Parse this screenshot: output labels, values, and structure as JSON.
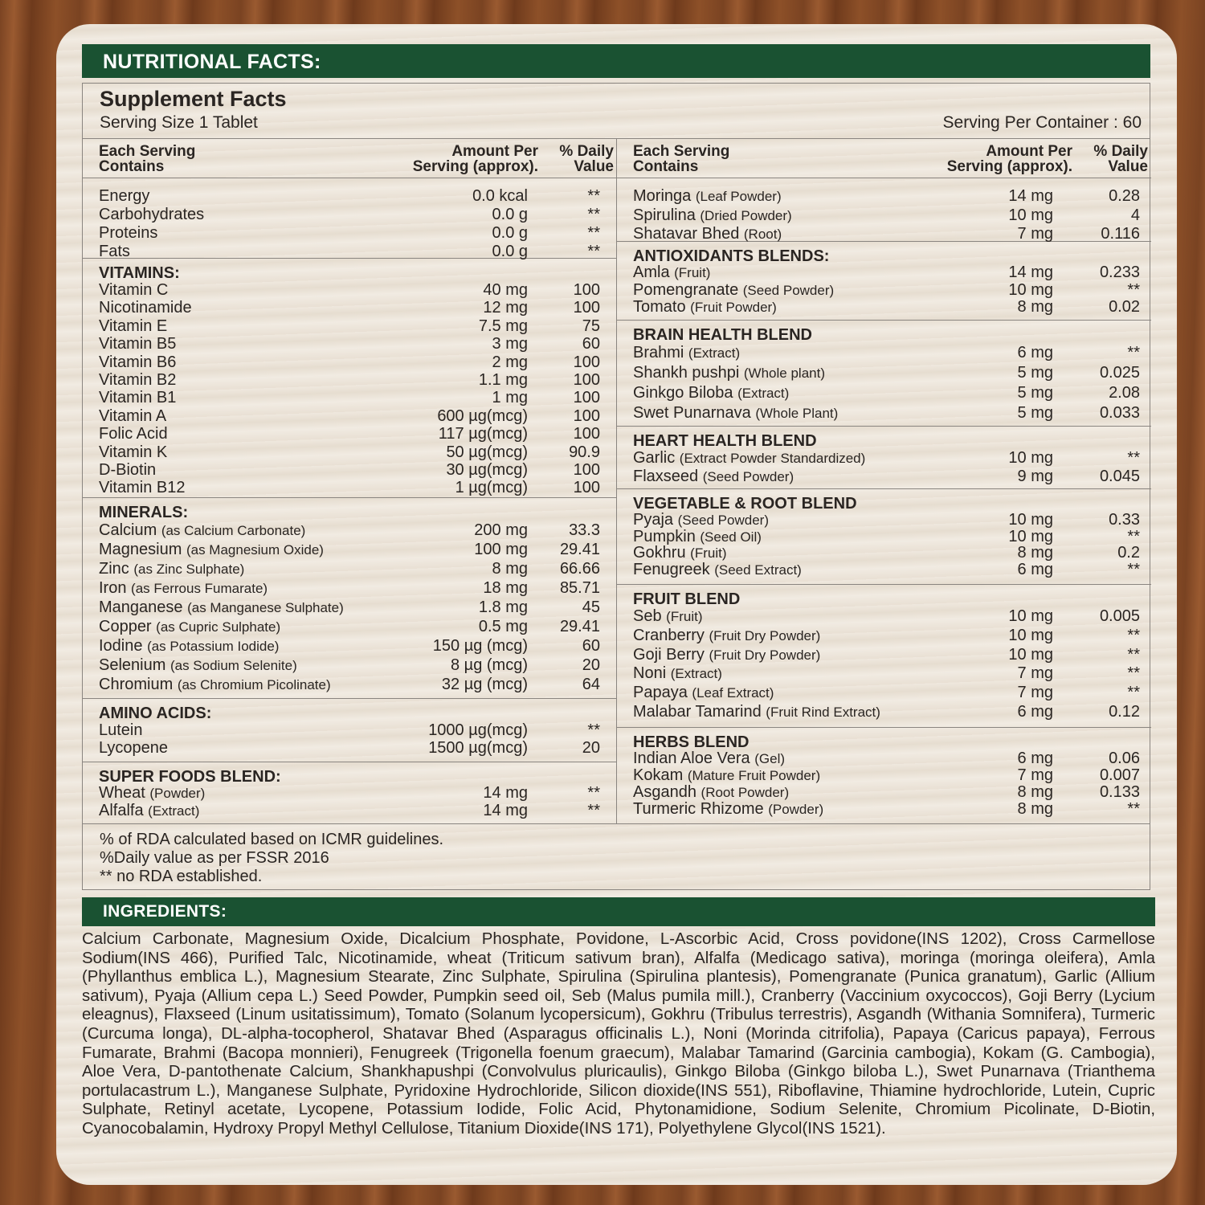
{
  "header": {
    "title": "NUTRITIONAL FACTS:"
  },
  "supplement": {
    "title": "Supplement Facts",
    "serving_size": "Serving Size 1 Tablet",
    "serving_per_container": "Serving Per Container : 60"
  },
  "columns": {
    "name": [
      "Each Serving",
      "Contains"
    ],
    "amount": [
      "Amount Per",
      "Serving (approx)."
    ],
    "dv": [
      "% Daily",
      "Value"
    ]
  },
  "left_sections": [
    {
      "title": "",
      "rows": [
        {
          "name": "Energy",
          "amount": "0.0 kcal",
          "dv": "**"
        },
        {
          "name": "Carbohydrates",
          "amount": "0.0 g",
          "dv": "**"
        },
        {
          "name": "Proteins",
          "amount": "0.0 g",
          "dv": "**"
        },
        {
          "name": "Fats",
          "amount": "0.0 g",
          "dv": "**"
        }
      ]
    },
    {
      "title": "VITAMINS:",
      "rows": [
        {
          "name": "Vitamin C",
          "amount": "40 mg",
          "dv": "100"
        },
        {
          "name": "Nicotinamide",
          "amount": "12 mg",
          "dv": "100"
        },
        {
          "name": "Vitamin E",
          "amount": "7.5 mg",
          "dv": "75"
        },
        {
          "name": "Vitamin B5",
          "amount": "3 mg",
          "dv": "60"
        },
        {
          "name": "Vitamin B6",
          "amount": "2 mg",
          "dv": "100"
        },
        {
          "name": "Vitamin B2",
          "amount": "1.1 mg",
          "dv": "100"
        },
        {
          "name": "Vitamin B1",
          "amount": "1 mg",
          "dv": "100"
        },
        {
          "name": "Vitamin A",
          "amount": "600 µg(mcg)",
          "dv": "100"
        },
        {
          "name": "Folic Acid",
          "amount": "117 µg(mcg)",
          "dv": "100"
        },
        {
          "name": "Vitamin K",
          "amount": "50 µg(mcg)",
          "dv": "90.9"
        },
        {
          "name": "D-Biotin",
          "amount": "30 µg(mcg)",
          "dv": "100"
        },
        {
          "name": "Vitamin B12",
          "amount": "1 µg(mcg)",
          "dv": "100"
        }
      ]
    },
    {
      "title": "MINERALS:",
      "rows": [
        {
          "name": "Calcium",
          "note": "(as Calcium Carbonate)",
          "amount": "200 mg",
          "dv": "33.3"
        },
        {
          "name": "Magnesium",
          "note": "(as Magnesium Oxide)",
          "amount": "100 mg",
          "dv": "29.41"
        },
        {
          "name": "Zinc",
          "note": "(as Zinc Sulphate)",
          "amount": "8 mg",
          "dv": "66.66"
        },
        {
          "name": "Iron",
          "note": "(as Ferrous Fumarate)",
          "amount": "18 mg",
          "dv": "85.71"
        },
        {
          "name": "Manganese",
          "note": "(as Manganese Sulphate)",
          "amount": "1.8 mg",
          "dv": "45"
        },
        {
          "name": "Copper",
          "note": "(as Cupric Sulphate)",
          "amount": "0.5 mg",
          "dv": "29.41"
        },
        {
          "name": "Iodine",
          "note": "(as Potassium Iodide)",
          "amount": "150 µg (mcg)",
          "dv": "60"
        },
        {
          "name": "Selenium",
          "note": "(as Sodium Selenite)",
          "amount": "8 µg (mcg)",
          "dv": "20"
        },
        {
          "name": "Chromium",
          "note": "(as Chromium Picolinate)",
          "amount": "32 µg (mcg)",
          "dv": "64"
        }
      ]
    },
    {
      "title": "AMINO ACIDS:",
      "rows": [
        {
          "name": "Lutein",
          "amount": "1000 µg(mcg)",
          "dv": "**"
        },
        {
          "name": "Lycopene",
          "amount": "1500 µg(mcg)",
          "dv": "20"
        }
      ]
    },
    {
      "title": "SUPER FOODS BLEND:",
      "rows": [
        {
          "name": "Wheat",
          "note": "(Powder)",
          "amount": "14 mg",
          "dv": "**"
        },
        {
          "name": "Alfalfa",
          "note": "(Extract)",
          "amount": "14 mg",
          "dv": "**"
        }
      ]
    }
  ],
  "right_sections": [
    {
      "title": "",
      "rows": [
        {
          "name": "Moringa",
          "note": "(Leaf Powder)",
          "amount": "14 mg",
          "dv": "0.28"
        },
        {
          "name": "Spirulina",
          "note": "(Dried Powder)",
          "amount": "10 mg",
          "dv": "4"
        },
        {
          "name": "Shatavar Bhed",
          "note": "(Root)",
          "amount": "7 mg",
          "dv": "0.116"
        }
      ]
    },
    {
      "title": "ANTIOXIDANTS BLENDS:",
      "rows": [
        {
          "name": "Amla",
          "note": "(Fruit)",
          "amount": "14 mg",
          "dv": "0.233"
        },
        {
          "name": "Pomengranate",
          "note": "(Seed Powder)",
          "amount": "10 mg",
          "dv": "**"
        },
        {
          "name": "Tomato",
          "note": "(Fruit Powder)",
          "amount": "8 mg",
          "dv": "0.02"
        }
      ]
    },
    {
      "title": "BRAIN HEALTH BLEND",
      "rows": [
        {
          "name": "Brahmi",
          "note": "(Extract)",
          "amount": "6 mg",
          "dv": "**"
        },
        {
          "name": "Shankh pushpi",
          "note": "(Whole plant)",
          "amount": "5 mg",
          "dv": "0.025"
        },
        {
          "name": "Ginkgo Biloba",
          "note": "(Extract)",
          "amount": "5 mg",
          "dv": "2.08"
        },
        {
          "name": "Swet Punarnava",
          "note": "(Whole Plant)",
          "amount": "5 mg",
          "dv": "0.033"
        }
      ]
    },
    {
      "title": "HEART HEALTH BLEND",
      "rows": [
        {
          "name": "Garlic",
          "note": "(Extract Powder Standardized)",
          "amount": "10 mg",
          "dv": "**"
        },
        {
          "name": "Flaxseed",
          "note": "(Seed Powder)",
          "amount": "9 mg",
          "dv": "0.045"
        }
      ]
    },
    {
      "title": "VEGETABLE & ROOT BLEND",
      "rows": [
        {
          "name": "Pyaja",
          "note": "(Seed Powder)",
          "amount": "10 mg",
          "dv": "0.33"
        },
        {
          "name": "Pumpkin",
          "note": "(Seed Oil)",
          "amount": "10 mg",
          "dv": "**"
        },
        {
          "name": "Gokhru",
          "note": "(Fruit)",
          "amount": "8 mg",
          "dv": "0.2"
        },
        {
          "name": "Fenugreek",
          "note": "(Seed Extract)",
          "amount": "6 mg",
          "dv": "**"
        }
      ]
    },
    {
      "title": "FRUIT BLEND",
      "rows": [
        {
          "name": "Seb",
          "note": "(Fruit)",
          "amount": "10 mg",
          "dv": "0.005"
        },
        {
          "name": "Cranberry",
          "note": "(Fruit Dry Powder)",
          "amount": "10 mg",
          "dv": "**"
        },
        {
          "name": "Goji Berry",
          "note": "(Fruit Dry Powder)",
          "amount": "10 mg",
          "dv": "**"
        },
        {
          "name": "Noni",
          "note": "(Extract)",
          "amount": "7 mg",
          "dv": "**"
        },
        {
          "name": "Papaya",
          "note": "(Leaf Extract)",
          "amount": "7 mg",
          "dv": "**"
        },
        {
          "name": "Malabar Tamarind",
          "note": "(Fruit Rind Extract)",
          "amount": "6 mg",
          "dv": "0.12"
        }
      ]
    },
    {
      "title": "HERBS BLEND",
      "rows": [
        {
          "name": "Indian Aloe Vera",
          "note": "(Gel)",
          "amount": "6 mg",
          "dv": "0.06"
        },
        {
          "name": "Kokam",
          "note": "(Mature Fruit Powder)",
          "amount": "7 mg",
          "dv": "0.007"
        },
        {
          "name": "Asgandh",
          "note": "(Root Powder)",
          "amount": "8 mg",
          "dv": "0.133"
        },
        {
          "name": "Turmeric Rhizome",
          "note": "(Powder)",
          "amount": "8 mg",
          "dv": "**"
        }
      ]
    }
  ],
  "footnotes": [
    "% of RDA calculated based on ICMR guidelines.",
    "%Daily value as per FSSR 2016",
    "** no RDA established."
  ],
  "ingredients": {
    "title": "INGREDIENTS:",
    "text": "Calcium Carbonate, Magnesium Oxide, Dicalcium Phosphate, Povidone, L-Ascorbic Acid, Cross povidone(INS 1202), Cross Carmellose Sodium(INS 466), Purified Talc, Nicotinamide, wheat (Triticum sativum bran), Alfalfa (Medicago sativa), moringa (moringa oleifera), Amla (Phyllanthus emblica L.), Magnesium Stearate, Zinc Sulphate, Spirulina (Spirulina plantesis), Pomengranate (Punica granatum), Garlic (Allium sativum), Pyaja (Allium cepa L.) Seed Powder, Pumpkin seed oil, Seb (Malus pumila mill.), Cranberry (Vaccinium oxycoccos), Goji Berry (Lycium eleagnus), Flaxseed (Linum usitatissimum), Tomato (Solanum lycopersicum), Gokhru (Tribulus terrestris), Asgandh (Withania Somnifera), Turmeric (Curcuma longa), DL-alpha-tocopherol, Shatavar Bhed (Asparagus officinalis L.), Noni (Morinda citrifolia), Papaya (Caricus papaya), Ferrous Fumarate, Brahmi (Bacopa monnieri), Fenugreek (Trigonella foenum graecum), Malabar Tamarind (Garcinia cambogia), Kokam (G. Cambogia), Aloe Vera, D-pantothenate Calcium, Shankhapushpi (Convolvulus pluricaulis), Ginkgo Biloba (Ginkgo biloba L.), Swet Punarnava (Trianthema portulacastrum L.), Manganese Sulphate, Pyridoxine Hydrochloride, Silicon dioxide(INS 551), Riboflavine, Thiamine hydrochloride, Lutein, Cupric Sulphate, Retinyl acetate, Lycopene, Potassium Iodide, Folic Acid, Phytonamidione, Sodium Selenite, Chromium Picolinate, D-Biotin, Cyanocobalamin, Hydroxy Propyl Methyl Cellulose, Titanium Dioxide(INS 171), Polyethylene Glycol(INS 1521)."
  },
  "colors": {
    "header_green": "#1a5232",
    "wood": "#7a4322",
    "panel": "#ede4d8"
  }
}
